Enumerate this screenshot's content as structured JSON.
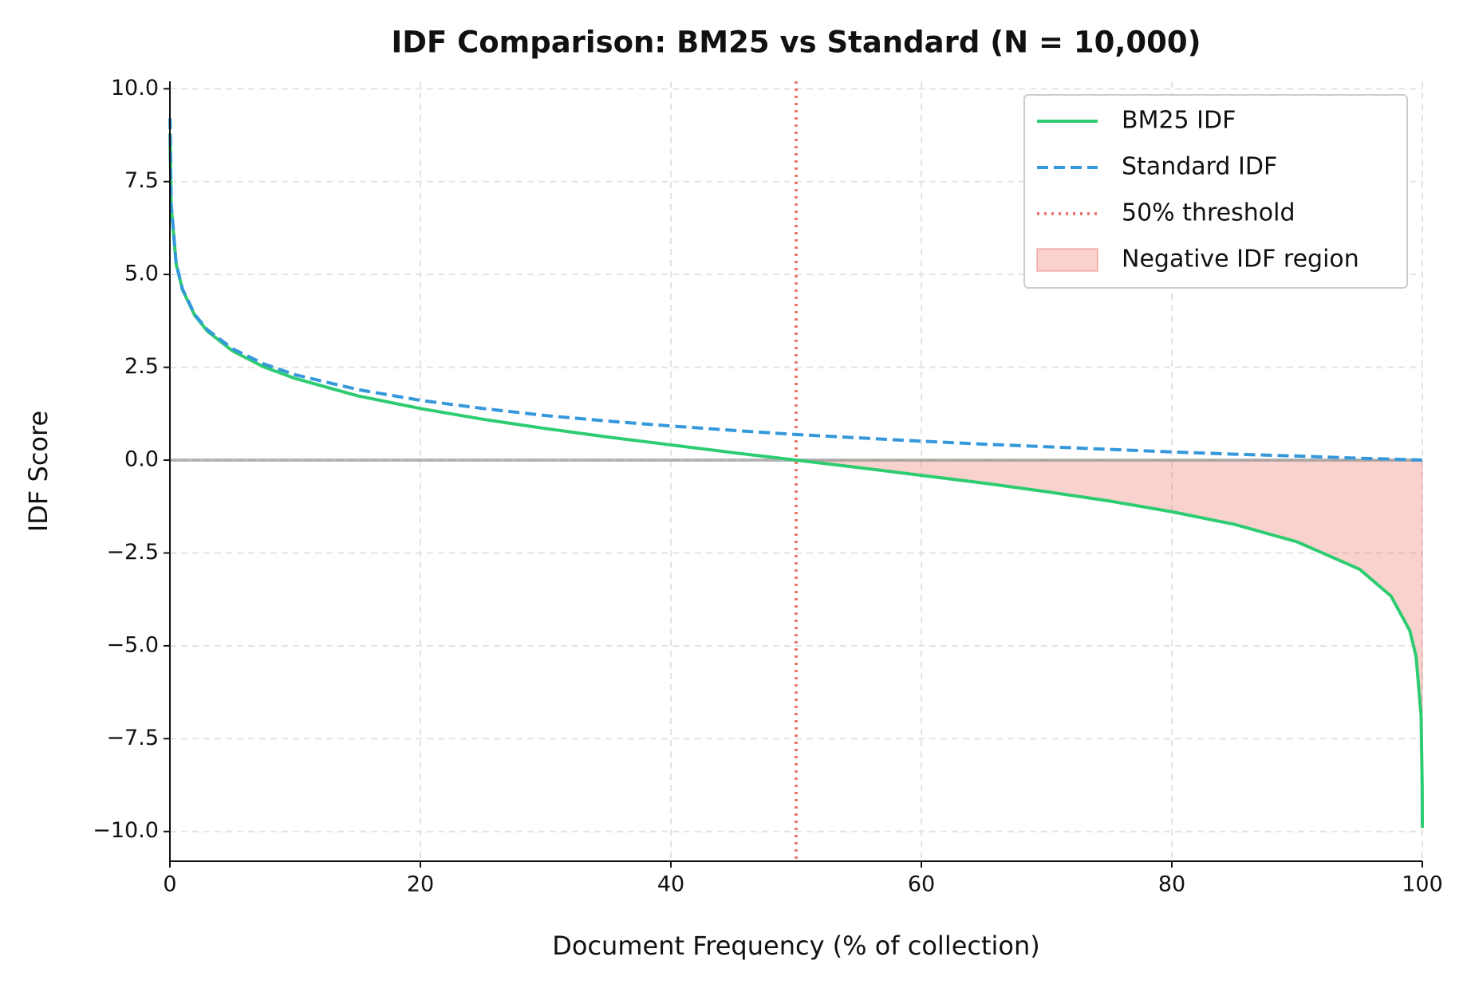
{
  "chart_data": {
    "type": "line",
    "title": "IDF Comparison: BM25 vs Standard (N = 10,000)",
    "x_label": "Document Frequency (% of collection)",
    "y_label": "IDF Score",
    "x": [
      0.01,
      0.1,
      0.5,
      1,
      2,
      3,
      5,
      7.5,
      10,
      15,
      20,
      25,
      30,
      35,
      40,
      45,
      50,
      55,
      60,
      65,
      70,
      75,
      80,
      85,
      90,
      95,
      97.5,
      99,
      99.5,
      99.9,
      99.99,
      100
    ],
    "series": [
      {
        "name": "BM25 IDF",
        "color": "#2ecc71",
        "style": "solid",
        "values": [
          8.8,
          6.86,
          5.28,
          4.59,
          3.89,
          3.47,
          2.94,
          2.51,
          2.2,
          1.73,
          1.39,
          1.1,
          0.85,
          0.62,
          0.41,
          0.2,
          0,
          -0.2,
          -0.41,
          -0.62,
          -0.85,
          -1.1,
          -1.39,
          -1.73,
          -2.2,
          -2.94,
          -3.66,
          -4.59,
          -5.28,
          -6.86,
          -8.8,
          -9.9
        ]
      },
      {
        "name": "Standard IDF",
        "color": "#3498db",
        "style": "dashed",
        "values": [
          9.21,
          6.91,
          5.3,
          4.61,
          3.91,
          3.51,
          3.0,
          2.59,
          2.3,
          1.9,
          1.61,
          1.39,
          1.2,
          1.05,
          0.92,
          0.8,
          0.69,
          0.6,
          0.51,
          0.43,
          0.36,
          0.29,
          0.22,
          0.16,
          0.11,
          0.05,
          0.03,
          0.01,
          0.01,
          0,
          0,
          0
        ]
      }
    ],
    "vline": {
      "x": 50,
      "name": "50% threshold",
      "color": "#e74c3c"
    },
    "fill_region": {
      "name": "Negative IDF region",
      "color": "#e74c3c",
      "series": 0
    },
    "hline": 0,
    "xlim": [
      0,
      100
    ],
    "xticks": [
      0,
      20,
      40,
      60,
      80,
      100
    ],
    "ylim": [
      -10.8,
      10.2
    ],
    "yticks": [
      {
        "value": -10,
        "label": "−10.0"
      },
      {
        "value": -7.5,
        "label": "−7.5"
      },
      {
        "value": -5,
        "label": "−5.0"
      },
      {
        "value": -2.5,
        "label": "−2.5"
      },
      {
        "value": 0,
        "label": "0.0"
      },
      {
        "value": 2.5,
        "label": "2.5"
      },
      {
        "value": 5,
        "label": "5.0"
      },
      {
        "value": 7.5,
        "label": "7.5"
      },
      {
        "value": 10,
        "label": "10.0"
      }
    ],
    "grid": true,
    "legend": "upper right"
  }
}
